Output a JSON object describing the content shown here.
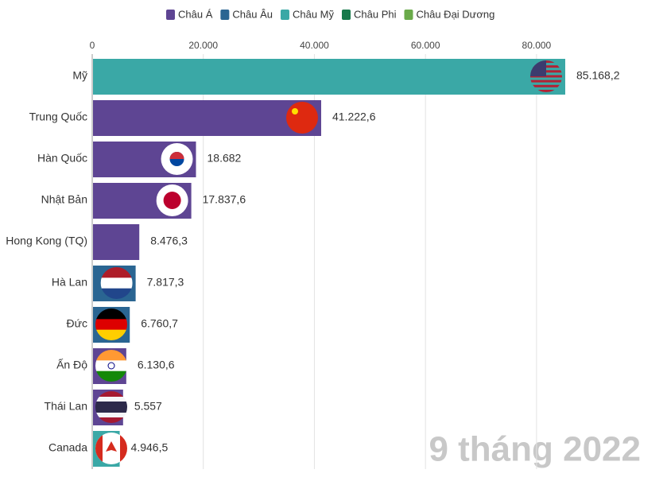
{
  "chart_data": {
    "type": "bar",
    "orientation": "horizontal",
    "legend": [
      {
        "name": "Châu Á",
        "color": "#5e4593"
      },
      {
        "name": "Châu Âu",
        "color": "#2a6592"
      },
      {
        "name": "Châu Mỹ",
        "color": "#3aa8a6"
      },
      {
        "name": "Châu Phi",
        "color": "#16794a"
      },
      {
        "name": "Châu Đại Dương",
        "color": "#6aaa4a"
      }
    ],
    "categories": [
      "Mỹ",
      "Trung Quốc",
      "Hàn Quốc",
      "Nhật Bản",
      "Hong Kong (TQ)",
      "Hà Lan",
      "Đức",
      "Ấn Độ",
      "Thái Lan",
      "Canada"
    ],
    "values": [
      85168.2,
      41222.6,
      18682,
      17837.6,
      8476.3,
      7817.3,
      6760.7,
      6130.6,
      5557,
      4946.5
    ],
    "value_labels": [
      "85.168,2",
      "41.222,6",
      "18.682",
      "17.837,6",
      "8.476,3",
      "7.817,3",
      "6.760,7",
      "6.130,6",
      "5.557",
      "4.946,5"
    ],
    "colors": [
      "#3aa8a6",
      "#5e4593",
      "#5e4593",
      "#5e4593",
      "#5e4593",
      "#2a6592",
      "#2a6592",
      "#5e4593",
      "#5e4593",
      "#3aa8a6"
    ],
    "xlim": [
      0,
      85168.2
    ],
    "xticks": [
      0,
      {
        "value": 20000,
        "label": "20.000"
      },
      {
        "value": 40000,
        "label": "40.000"
      },
      {
        "value": 60000,
        "label": "60.000"
      },
      {
        "value": 80000,
        "label": "80.000"
      }
    ],
    "grid": true,
    "annotation": "9 tháng 2022"
  }
}
